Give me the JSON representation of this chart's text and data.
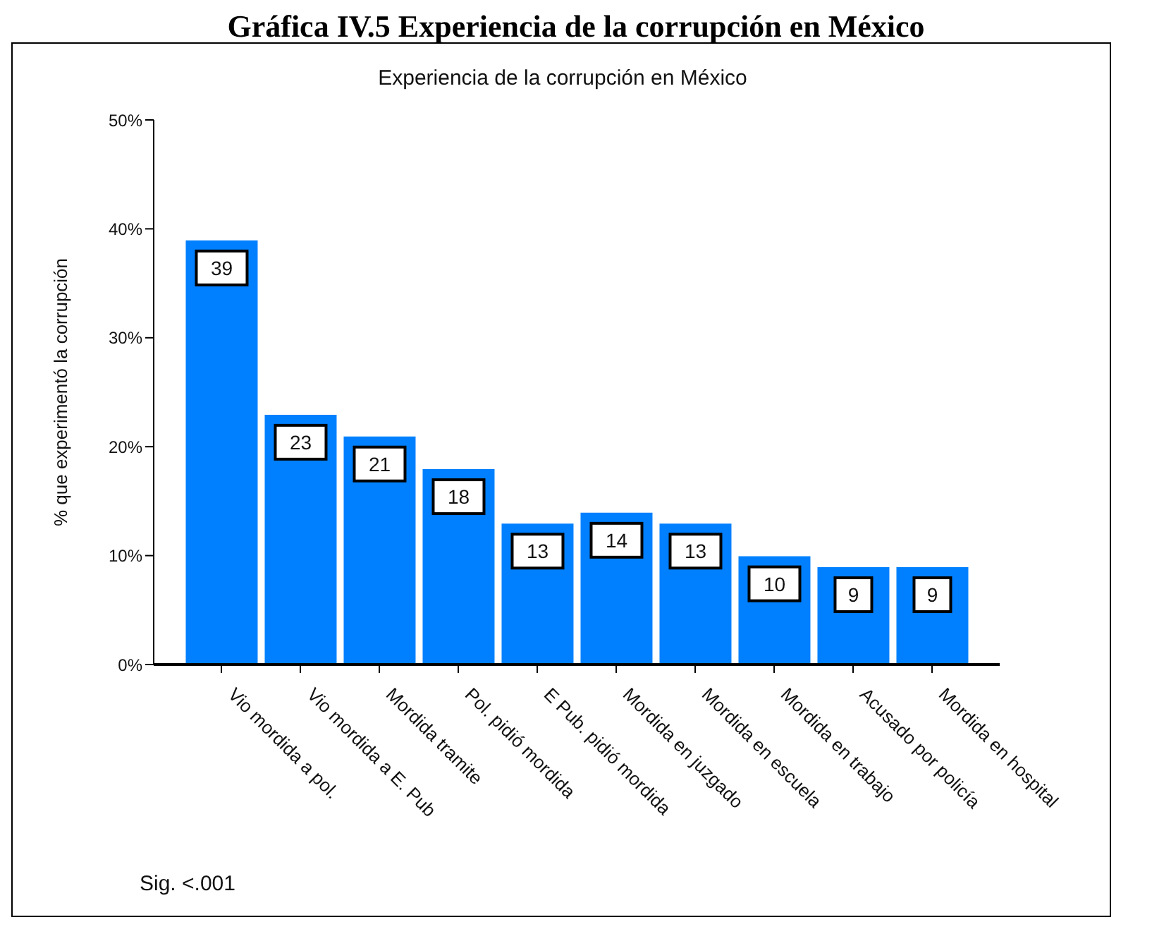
{
  "chart_data": {
    "type": "bar",
    "title": "Gráfica IV.5 Experiencia de la corrupción en México",
    "subtitle": "Experiencia de la corrupción en México",
    "ylabel": "% que experimentó la corrupción",
    "categories": [
      "Vio mordida a pol.",
      "Vio mordida a E. Pub",
      "Mordida tramite",
      "Pol. pidió mordida",
      "E Pub. pidió mordida",
      "Mordida en juzgado",
      "Mordida en escuela",
      "Mordida en trabajo",
      "Acusado por policía",
      "Mordida en hospital"
    ],
    "values": [
      39,
      23,
      21,
      18,
      13,
      14,
      13,
      10,
      9,
      9
    ],
    "color": "#0080ff",
    "ylim": [
      0,
      50
    ],
    "yticks": [
      {
        "value": 0,
        "label": "0%"
      },
      {
        "value": 10,
        "label": "10%"
      },
      {
        "value": 20,
        "label": "20%"
      },
      {
        "value": 30,
        "label": "30%"
      },
      {
        "value": 40,
        "label": "40%"
      },
      {
        "value": 50,
        "label": "50%"
      }
    ],
    "data_labels": true,
    "grid": false,
    "legend": false,
    "annotations": [
      "Sig. <.001"
    ]
  }
}
